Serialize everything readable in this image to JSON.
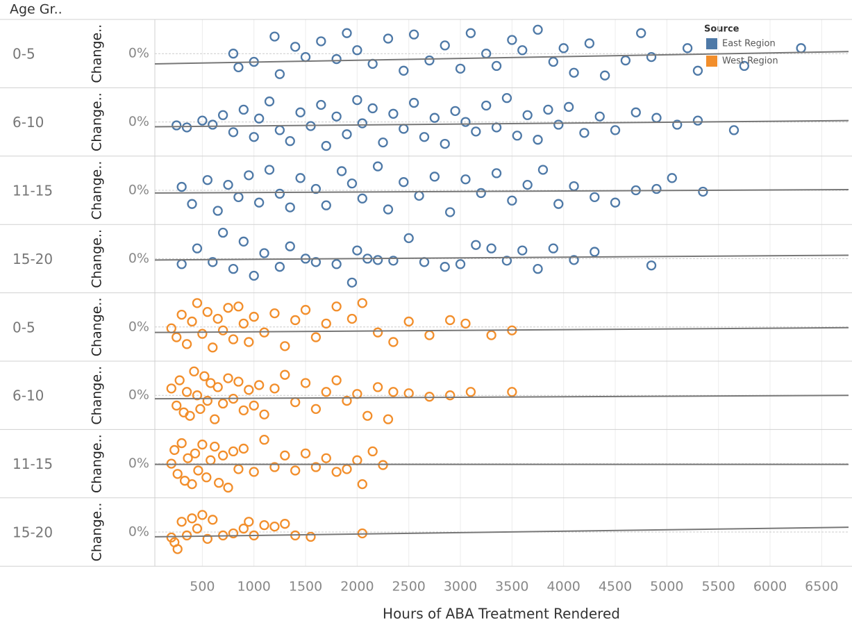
{
  "chart_data": {
    "type": "scatter",
    "row_header": "Age Gr..",
    "y_label": "Change..",
    "x_label": "Hours of ABA Treatment Rendered",
    "xlim": [
      40,
      6760
    ],
    "xticks": [
      500,
      1000,
      1500,
      2000,
      2500,
      3000,
      3500,
      4000,
      4500,
      5000,
      5500,
      6000,
      6500
    ],
    "ylim": [
      -50,
      50
    ],
    "yticks": [
      {
        "value": 0,
        "label": "0%"
      }
    ],
    "grid": true,
    "legend_title": "Source",
    "legend_position": "top-right",
    "series": [
      {
        "name": "East Region",
        "color": "#4e79a7",
        "panels": [
          {
            "label": "0-5",
            "trend": [
              -15,
              3
            ],
            "x": [
              800,
              850,
              1000,
              1200,
              1250,
              1400,
              1500,
              1650,
              1800,
              1900,
              2000,
              2150,
              2300,
              2450,
              2550,
              2700,
              2850,
              3000,
              3100,
              3250,
              3350,
              3500,
              3600,
              3750,
              3900,
              4000,
              4100,
              4250,
              4400,
              4600,
              4750,
              4850,
              5200,
              5300,
              5750,
              6300
            ],
            "values": [
              0,
              -20,
              -12,
              25,
              -30,
              10,
              -5,
              18,
              -8,
              30,
              5,
              -15,
              22,
              -25,
              28,
              -10,
              12,
              -22,
              30,
              0,
              -18,
              20,
              5,
              35,
              -12,
              8,
              -28,
              15,
              -32,
              -10,
              30,
              -5,
              8,
              -25,
              -18,
              8
            ]
          },
          {
            "label": "6-10",
            "trend": [
              -7,
              2
            ],
            "x": [
              250,
              350,
              500,
              600,
              700,
              800,
              900,
              1000,
              1050,
              1150,
              1250,
              1350,
              1450,
              1550,
              1650,
              1700,
              1800,
              1900,
              2000,
              2050,
              2150,
              2250,
              2350,
              2450,
              2550,
              2650,
              2750,
              2850,
              2950,
              3050,
              3150,
              3250,
              3350,
              3450,
              3550,
              3650,
              3750,
              3850,
              3950,
              4050,
              4200,
              4350,
              4500,
              4700,
              4900,
              5100,
              5300,
              5650
            ],
            "values": [
              -5,
              -8,
              2,
              -4,
              10,
              -15,
              18,
              -22,
              5,
              30,
              -12,
              -28,
              14,
              -6,
              25,
              -35,
              8,
              -18,
              32,
              -2,
              20,
              -30,
              12,
              -10,
              28,
              -22,
              6,
              -32,
              16,
              0,
              -14,
              24,
              -8,
              35,
              -20,
              10,
              -26,
              18,
              -4,
              22,
              -16,
              8,
              -12,
              14,
              6,
              -4,
              2,
              -12
            ]
          },
          {
            "label": "11-15",
            "trend": [
              -4,
              1
            ],
            "x": [
              300,
              400,
              550,
              650,
              750,
              850,
              950,
              1050,
              1150,
              1250,
              1350,
              1450,
              1600,
              1700,
              1850,
              1950,
              2050,
              2200,
              2300,
              2450,
              2600,
              2750,
              2900,
              3050,
              3200,
              3350,
              3500,
              3650,
              3800,
              3950,
              4100,
              4300,
              4500,
              4700,
              4900,
              5050,
              5350
            ],
            "values": [
              5,
              -20,
              15,
              -30,
              8,
              -10,
              22,
              -18,
              30,
              -5,
              -25,
              18,
              2,
              -22,
              28,
              10,
              -12,
              35,
              -28,
              12,
              -8,
              20,
              -32,
              16,
              -4,
              25,
              -15,
              8,
              30,
              -20,
              6,
              -10,
              -18,
              0,
              2,
              18,
              -2
            ]
          },
          {
            "label": "15-20",
            "trend": [
              -2,
              5
            ],
            "x": [
              300,
              450,
              600,
              700,
              800,
              900,
              1000,
              1100,
              1250,
              1350,
              1500,
              1600,
              1800,
              1950,
              2000,
              2100,
              2200,
              2350,
              2500,
              2650,
              2850,
              3000,
              3150,
              3300,
              3450,
              3600,
              3750,
              3900,
              4100,
              4300,
              4850
            ],
            "values": [
              -8,
              15,
              -5,
              38,
              -15,
              25,
              -25,
              8,
              -12,
              18,
              0,
              -5,
              -8,
              -35,
              12,
              0,
              -2,
              -3,
              30,
              -5,
              -12,
              -8,
              20,
              15,
              -3,
              12,
              -15,
              15,
              -2,
              10,
              -10
            ]
          }
        ]
      },
      {
        "name": "West Region",
        "color": "#f28e2b",
        "panels": [
          {
            "label": "0-5",
            "trend": [
              -8,
              -1
            ],
            "x": [
              200,
              250,
              300,
              350,
              400,
              450,
              500,
              550,
              600,
              650,
              700,
              750,
              800,
              850,
              900,
              950,
              1000,
              1100,
              1200,
              1300,
              1400,
              1500,
              1600,
              1700,
              1800,
              1950,
              2050,
              2200,
              2350,
              2500,
              2700,
              2900,
              3050,
              3300,
              3500
            ],
            "values": [
              -2,
              -15,
              18,
              -25,
              8,
              35,
              -10,
              22,
              -30,
              12,
              -5,
              28,
              -18,
              30,
              5,
              -22,
              15,
              -8,
              20,
              -28,
              10,
              25,
              -15,
              5,
              30,
              12,
              35,
              -8,
              -22,
              8,
              -12,
              10,
              5,
              -12,
              -5
            ]
          },
          {
            "label": "6-10",
            "trend": [
              -5,
              0
            ],
            "x": [
              200,
              250,
              280,
              320,
              350,
              380,
              420,
              450,
              480,
              520,
              550,
              580,
              620,
              650,
              700,
              750,
              800,
              850,
              900,
              950,
              1000,
              1050,
              1100,
              1200,
              1300,
              1400,
              1500,
              1600,
              1700,
              1800,
              1900,
              2000,
              2100,
              2200,
              2300,
              2350,
              2500,
              2700,
              2900,
              3100,
              3500
            ],
            "values": [
              10,
              -15,
              22,
              -25,
              5,
              -30,
              35,
              0,
              -20,
              28,
              -8,
              18,
              -35,
              12,
              -12,
              25,
              -5,
              20,
              -22,
              8,
              -15,
              15,
              -28,
              10,
              30,
              -10,
              18,
              -20,
              5,
              22,
              -8,
              2,
              -30,
              12,
              -35,
              5,
              3,
              -2,
              0,
              5,
              5
            ]
          },
          {
            "label": "11-15",
            "trend": [
              -1,
              -1
            ],
            "x": [
              200,
              230,
              260,
              300,
              330,
              360,
              400,
              430,
              460,
              500,
              540,
              580,
              620,
              660,
              700,
              750,
              800,
              850,
              900,
              1000,
              1100,
              1200,
              1300,
              1400,
              1500,
              1600,
              1700,
              1800,
              1900,
              2000,
              2050,
              2150,
              2250
            ],
            "values": [
              0,
              20,
              -15,
              30,
              -25,
              8,
              -30,
              15,
              -10,
              28,
              -20,
              5,
              25,
              -28,
              12,
              -35,
              18,
              -8,
              22,
              -12,
              35,
              -5,
              12,
              -10,
              15,
              -5,
              8,
              -12,
              -8,
              5,
              -30,
              18,
              -2
            ]
          },
          {
            "label": "15-20",
            "trend": [
              -7,
              7
            ],
            "x": [
              200,
              230,
              260,
              300,
              350,
              400,
              450,
              500,
              550,
              600,
              700,
              800,
              900,
              950,
              1000,
              1100,
              1200,
              1300,
              1400,
              1550,
              2050
            ],
            "values": [
              -8,
              -15,
              -25,
              15,
              -5,
              20,
              5,
              25,
              -10,
              18,
              -5,
              -2,
              5,
              15,
              -5,
              10,
              8,
              12,
              -5,
              -7,
              -2
            ]
          }
        ]
      }
    ]
  }
}
